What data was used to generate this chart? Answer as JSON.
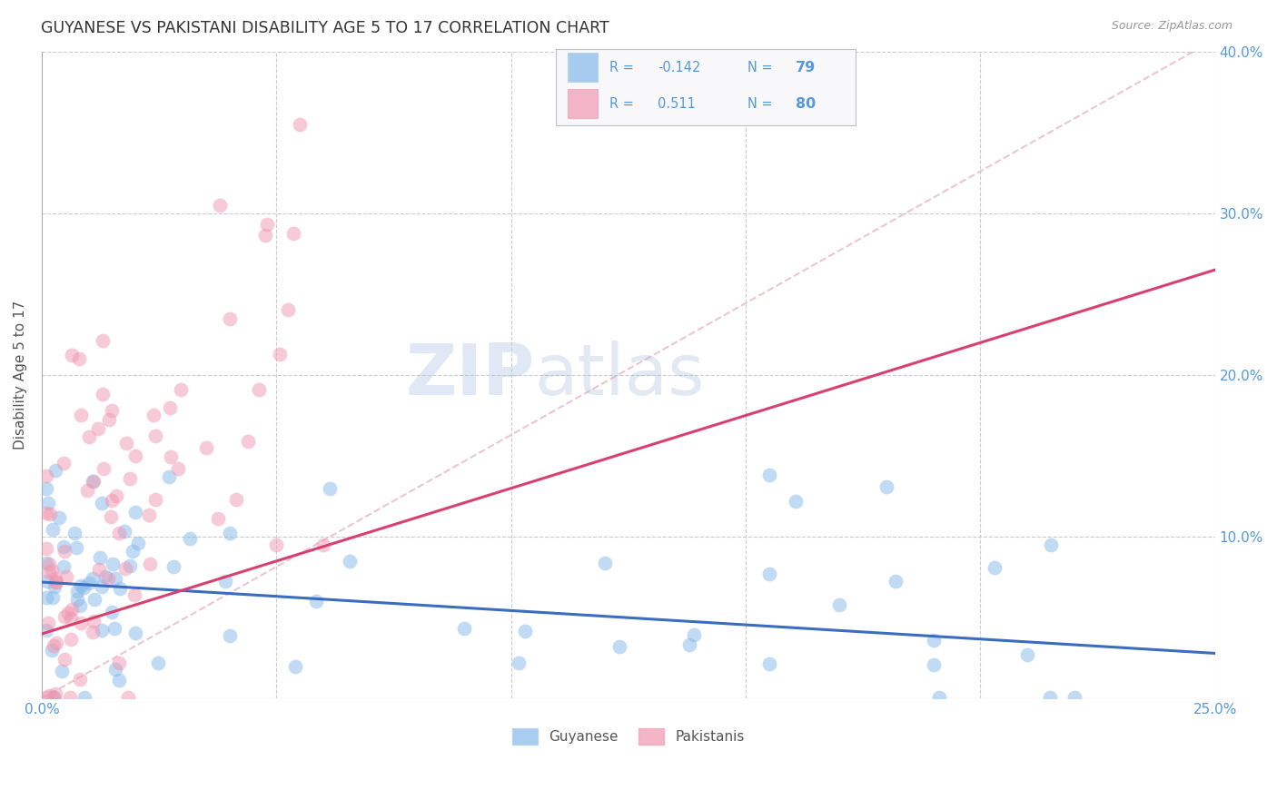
{
  "title": "GUYANESE VS PAKISTANI DISABILITY AGE 5 TO 17 CORRELATION CHART",
  "source": "Source: ZipAtlas.com",
  "ylabel": "Disability Age 5 to 17",
  "xlim": [
    0.0,
    0.25
  ],
  "ylim": [
    0.0,
    0.4
  ],
  "background_color": "#ffffff",
  "grid_color": "#cccccc",
  "watermark_text": "ZIPatlas",
  "blue_color": "#85b8ea",
  "pink_color": "#f097b0",
  "blue_line_color": "#3a6cc0",
  "pink_line_color": "#d94070",
  "diagonal_line_color": "#e8b8c0",
  "title_color": "#333333",
  "axis_label_color": "#555555",
  "tick_label_color": "#5599dd",
  "legend_text_color": "#5599dd",
  "legend_R_blue": "-0.142",
  "legend_N_blue": "79",
  "legend_R_pink": "0.511",
  "legend_N_pink": "80",
  "blue_line_x0": 0.0,
  "blue_line_y0": 0.072,
  "blue_line_x1": 0.25,
  "blue_line_y1": 0.028,
  "pink_line_x0": 0.0,
  "pink_line_y0": 0.04,
  "pink_line_x1": 0.25,
  "pink_line_y1": 0.265
}
